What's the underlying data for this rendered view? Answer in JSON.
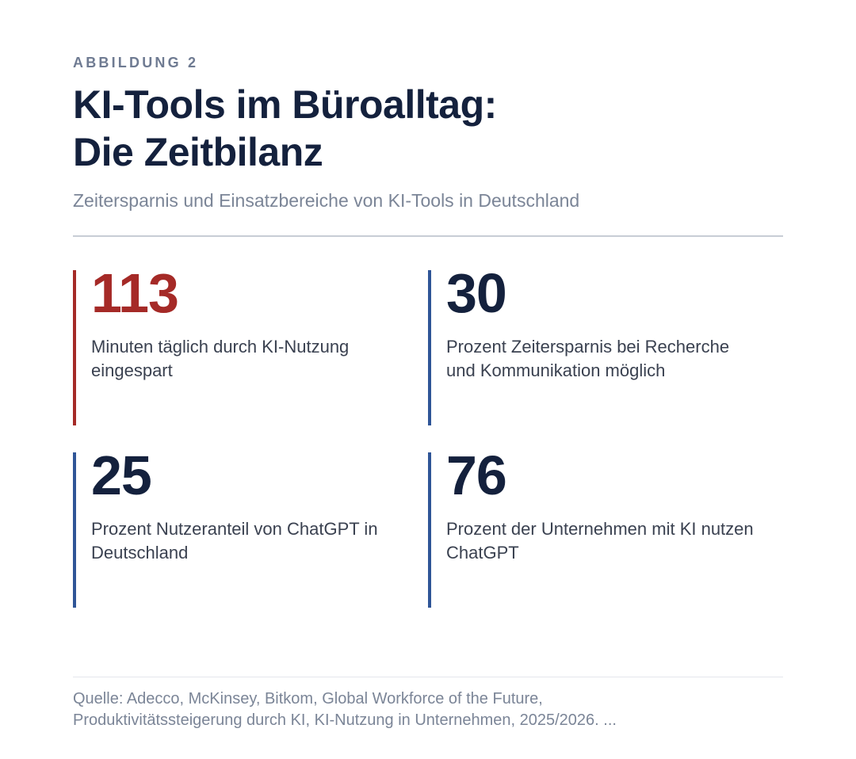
{
  "figure": {
    "eyebrow": "ABBILDUNG 2",
    "title_line1": "KI-Tools im Büroalltag:",
    "title_line2": "Die Zeitbilanz",
    "subtitle": "Zeitersparnis und Einsatzbereiche von KI-Tools in Deutschland"
  },
  "stats": [
    {
      "value": "113",
      "label": "Minuten täglich durch KI-Nutzung eingespart",
      "accent": "#a52a27"
    },
    {
      "value": "30",
      "label": "Prozent Zeitersparnis bei Recherche und Kommunikation möglich",
      "accent": "#2f5597"
    },
    {
      "value": "25",
      "label": "Prozent Nutzeranteil von ChatGPT in Deutschland",
      "accent": "#2f5597"
    },
    {
      "value": "76",
      "label": "Prozent der Unternehmen mit KI nutzen ChatGPT",
      "accent": "#2f5597"
    }
  ],
  "source": {
    "line1": "Quelle: Adecco, McKinsey, Bitkom, Global Workforce of the Future,",
    "line2": "Produktivitätssteigerung durch KI, KI-Nutzung in Unternehmen, 2025/2026. ..."
  },
  "colors": {
    "title": "#14213d",
    "muted": "#7b8597",
    "highlight": "#a52a27",
    "accent": "#2f5597"
  }
}
